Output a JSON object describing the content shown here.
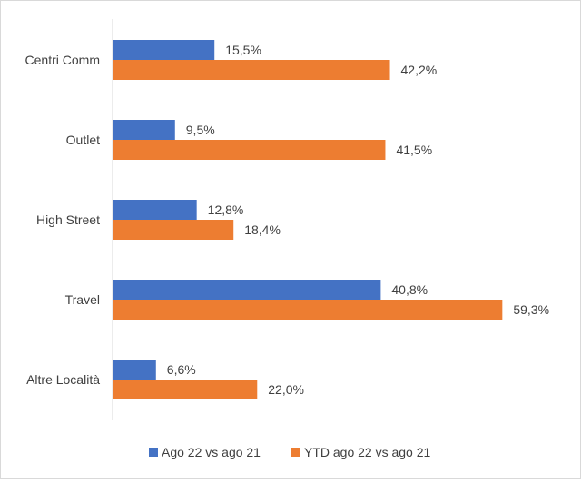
{
  "chart_data": {
    "type": "bar",
    "orientation": "horizontal",
    "categories": [
      "Centri Comm",
      "Outlet",
      "High Street",
      "Travel",
      "Altre Località"
    ],
    "series": [
      {
        "name": "Ago 22 vs ago 21",
        "color": "#4472C4",
        "values": [
          15.5,
          9.5,
          12.8,
          40.8,
          6.6
        ],
        "labels": [
          "15,5%",
          "9,5%",
          "12,8%",
          "40,8%",
          "6,6%"
        ]
      },
      {
        "name": "YTD ago 22 vs ago 21",
        "color": "#ED7D31",
        "values": [
          42.2,
          41.5,
          18.4,
          59.3,
          22.0
        ],
        "labels": [
          "42,2%",
          "41,5%",
          "18,4%",
          "59,3%",
          "22,0%"
        ]
      }
    ],
    "xlim": [
      0,
      60
    ],
    "grid": false,
    "legend_position": "bottom"
  }
}
